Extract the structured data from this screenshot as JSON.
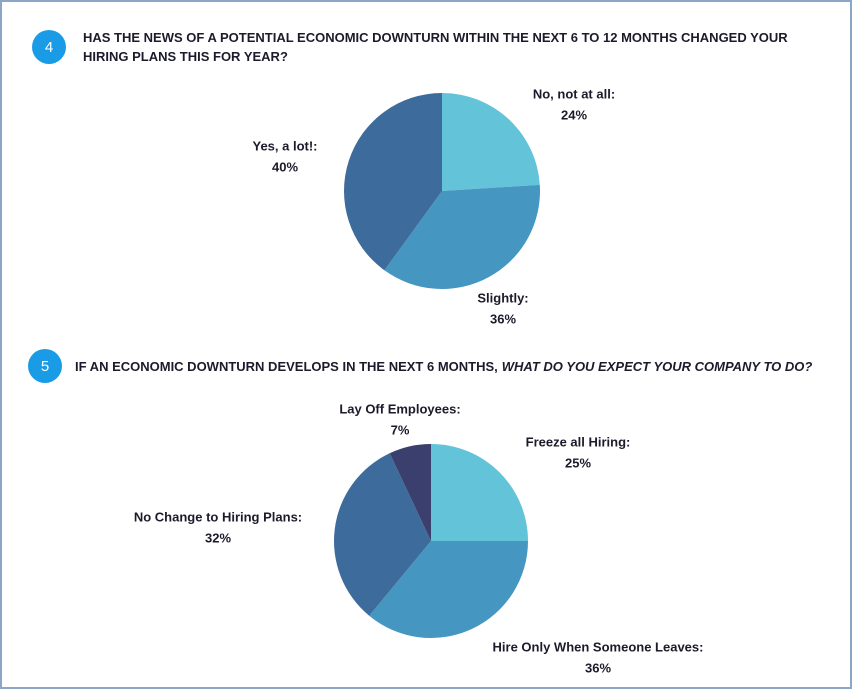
{
  "chart_data": [
    {
      "type": "pie",
      "number": "4",
      "title": "HAS THE NEWS OF A POTENTIAL ECONOMIC DOWNTURN WITHIN THE NEXT 6 TO 12 MONTHS CHANGED YOUR HIRING PLANS THIS FOR YEAR?",
      "categories": [
        "No, not at all:",
        "Slightly:",
        "Yes, a lot!:"
      ],
      "values": [
        24,
        36,
        40
      ],
      "value_labels": [
        "24%",
        "36%",
        "40%"
      ],
      "colors": [
        "#62c3d9",
        "#4596c0",
        "#3d6b9b"
      ]
    },
    {
      "type": "pie",
      "number": "5",
      "title": "IF AN ECONOMIC DOWNTURN DEVELOPS IN THE NEXT 6 MONTHS,",
      "title_italic": "WHAT DO YOU EXPECT YOUR COMPANY TO DO?",
      "categories": [
        "Freeze all Hiring:",
        "Hire Only When Someone Leaves:",
        "No Change to Hiring Plans:",
        "Lay Off Employees:"
      ],
      "values": [
        25,
        36,
        32,
        7
      ],
      "value_labels": [
        "25%",
        "36%",
        "32%",
        "7%"
      ],
      "colors": [
        "#62c3d9",
        "#4596c0",
        "#3d6b9b",
        "#3a3f6e"
      ]
    }
  ]
}
